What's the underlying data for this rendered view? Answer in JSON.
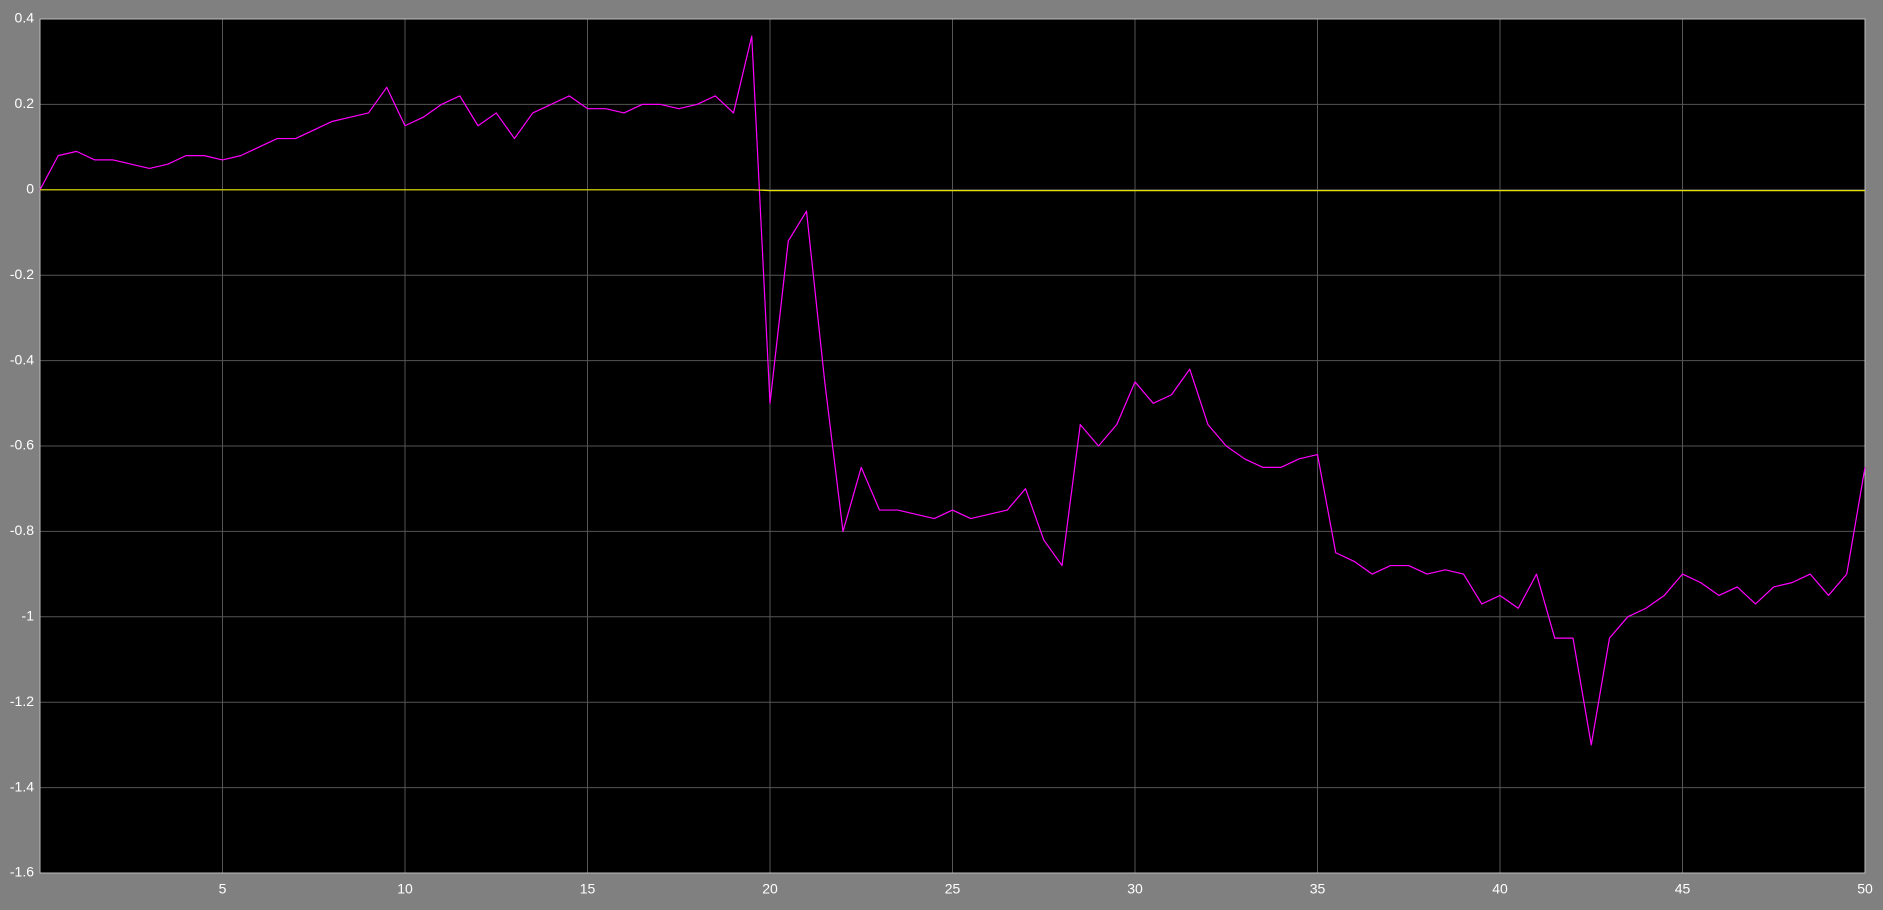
{
  "chart_data": {
    "type": "line",
    "x": [
      0,
      0.5,
      1,
      1.5,
      2,
      2.5,
      3,
      3.5,
      4,
      4.5,
      5,
      5.5,
      6,
      6.5,
      7,
      7.5,
      8,
      8.5,
      9,
      9.5,
      10,
      10.5,
      11,
      11.5,
      12,
      12.5,
      13,
      13.5,
      14,
      14.5,
      15,
      15.5,
      16,
      16.5,
      17,
      17.5,
      18,
      18.5,
      19,
      19.5,
      20,
      20.5,
      21,
      21.5,
      22,
      22.5,
      23,
      23.5,
      24,
      24.5,
      25,
      25.5,
      26,
      26.5,
      27,
      27.5,
      28,
      28.5,
      29,
      29.5,
      30,
      30.5,
      31,
      31.5,
      32,
      32.5,
      33,
      33.5,
      34,
      34.5,
      35,
      35.5,
      36,
      36.5,
      37,
      37.5,
      38,
      38.5,
      39,
      39.5,
      40,
      40.5,
      41,
      41.5,
      42,
      42.5,
      43,
      43.5,
      44,
      44.5,
      45,
      45.5,
      46,
      46.5,
      47,
      47.5,
      48,
      48.5,
      49,
      49.5,
      50
    ],
    "series": [
      {
        "color": "#ff00ff",
        "values": [
          0,
          0.08,
          0.09,
          0.07,
          0.07,
          0.06,
          0.05,
          0.06,
          0.08,
          0.08,
          0.07,
          0.08,
          0.1,
          0.12,
          0.12,
          0.14,
          0.16,
          0.17,
          0.18,
          0.24,
          0.15,
          0.17,
          0.2,
          0.22,
          0.15,
          0.18,
          0.12,
          0.18,
          0.2,
          0.22,
          0.19,
          0.19,
          0.18,
          0.2,
          0.2,
          0.19,
          0.2,
          0.22,
          0.18,
          0.36,
          -0.5,
          -0.12,
          -0.05,
          -0.45,
          -0.8,
          -0.65,
          -0.75,
          -0.75,
          -0.76,
          -0.77,
          -0.75,
          -0.77,
          -0.76,
          -0.75,
          -0.7,
          -0.82,
          -0.88,
          -0.55,
          -0.6,
          -0.55,
          -0.45,
          -0.5,
          -0.48,
          -0.42,
          -0.55,
          -0.6,
          -0.63,
          -0.65,
          -0.65,
          -0.63,
          -0.62,
          -0.85,
          -0.87,
          -0.9,
          -0.88,
          -0.88,
          -0.9,
          -0.89,
          -0.9,
          -0.97,
          -0.95,
          -0.98,
          -0.9,
          -1.05,
          -1.05,
          -1.3,
          -1.05,
          -1.0,
          -0.98,
          -0.95,
          -0.9,
          -0.92,
          -0.95,
          -0.93,
          -0.97,
          -0.93,
          -0.92,
          -0.9,
          -0.95,
          -0.9,
          -0.65
        ]
      },
      {
        "color": "#e0e000",
        "values": [
          0,
          0,
          0,
          0,
          0,
          0,
          0,
          0,
          0,
          0,
          0,
          0,
          0,
          0,
          0,
          0,
          0,
          0,
          0,
          0,
          0,
          0,
          0,
          0,
          0,
          0,
          0,
          0,
          0,
          0,
          0,
          0,
          0,
          0,
          0,
          0,
          0,
          0,
          0,
          0,
          -0.002,
          -0.002,
          -0.002,
          -0.002,
          -0.002,
          -0.002,
          -0.002,
          -0.002,
          -0.002,
          -0.002,
          -0.002,
          -0.002,
          -0.002,
          -0.002,
          -0.002,
          -0.002,
          -0.002,
          -0.002,
          -0.002,
          -0.002,
          -0.002,
          -0.002,
          -0.002,
          -0.002,
          -0.002,
          -0.002,
          -0.002,
          -0.002,
          -0.002,
          -0.002,
          -0.002,
          -0.002,
          -0.002,
          -0.002,
          -0.002,
          -0.002,
          -0.002,
          -0.002,
          -0.002,
          -0.002,
          -0.002,
          -0.002,
          -0.002,
          -0.002,
          -0.002,
          -0.002,
          -0.002,
          -0.002,
          -0.002,
          -0.002,
          -0.002,
          -0.002,
          -0.002,
          -0.002,
          -0.002,
          -0.002,
          -0.002,
          -0.002,
          -0.002,
          -0.002,
          -0.002
        ]
      }
    ],
    "xlim": [
      0,
      50
    ],
    "xticks": [
      5,
      10,
      15,
      20,
      25,
      30,
      35,
      40,
      45,
      50
    ],
    "ylim": [
      -1.6,
      0.4
    ],
    "yticks": [
      -1.6,
      -1.4,
      -1.2,
      -1,
      -0.8,
      -0.6,
      -0.4,
      -0.2,
      0,
      0.2,
      0.4
    ],
    "grid": true
  }
}
